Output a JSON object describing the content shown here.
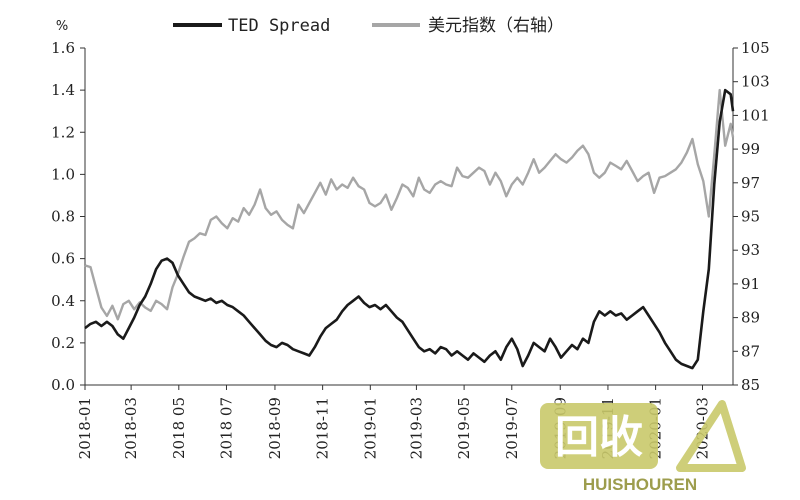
{
  "chart_data": {
    "type": "line",
    "left_axis": {
      "unit": "%",
      "ticks": [
        "0.0",
        "0.2",
        "0.4",
        "0.6",
        "0.8",
        "1.0",
        "1.2",
        "1.4",
        "1.6"
      ],
      "ylim": [
        0,
        1.6
      ]
    },
    "right_axis": {
      "ticks": [
        "85",
        "87",
        "89",
        "91",
        "93",
        "95",
        "97",
        "99",
        "101",
        "103",
        "105"
      ],
      "ylim": [
        85,
        105
      ]
    },
    "x_ticks": [
      "2018-01",
      "2018-03",
      "2018 05",
      "2018 07",
      "2018-09",
      "2018-11",
      "2019-01",
      "2019-03",
      "2019-05",
      "2019-07",
      "2019-09",
      "2019-11",
      "2020-01",
      "2020-03"
    ],
    "legend": [
      "TED Spread",
      "美元指数（右轴）"
    ],
    "legend_position": "top",
    "grid": false,
    "series": [
      {
        "name": "TED Spread",
        "axis": "left",
        "color": "#1a1a1a",
        "points": [
          [
            "2018-01-01",
            0.27
          ],
          [
            "2018-01-08",
            0.29
          ],
          [
            "2018-01-15",
            0.3
          ],
          [
            "2018-01-22",
            0.28
          ],
          [
            "2018-01-29",
            0.3
          ],
          [
            "2018-02-05",
            0.28
          ],
          [
            "2018-02-12",
            0.24
          ],
          [
            "2018-02-19",
            0.22
          ],
          [
            "2018-02-26",
            0.27
          ],
          [
            "2018-03-05",
            0.32
          ],
          [
            "2018-03-12",
            0.38
          ],
          [
            "2018-03-19",
            0.42
          ],
          [
            "2018-03-26",
            0.48
          ],
          [
            "2018-04-02",
            0.55
          ],
          [
            "2018-04-09",
            0.59
          ],
          [
            "2018-04-16",
            0.6
          ],
          [
            "2018-04-23",
            0.58
          ],
          [
            "2018-04-30",
            0.52
          ],
          [
            "2018-05-07",
            0.48
          ],
          [
            "2018-05-14",
            0.44
          ],
          [
            "2018-05-21",
            0.42
          ],
          [
            "2018-05-28",
            0.41
          ],
          [
            "2018-06-04",
            0.4
          ],
          [
            "2018-06-11",
            0.41
          ],
          [
            "2018-06-18",
            0.39
          ],
          [
            "2018-06-25",
            0.4
          ],
          [
            "2018-07-02",
            0.38
          ],
          [
            "2018-07-09",
            0.37
          ],
          [
            "2018-07-16",
            0.35
          ],
          [
            "2018-07-23",
            0.33
          ],
          [
            "2018-07-30",
            0.3
          ],
          [
            "2018-08-06",
            0.27
          ],
          [
            "2018-08-13",
            0.24
          ],
          [
            "2018-08-20",
            0.21
          ],
          [
            "2018-08-27",
            0.19
          ],
          [
            "2018-09-03",
            0.18
          ],
          [
            "2018-09-10",
            0.2
          ],
          [
            "2018-09-17",
            0.19
          ],
          [
            "2018-09-24",
            0.17
          ],
          [
            "2018-10-01",
            0.16
          ],
          [
            "2018-10-08",
            0.15
          ],
          [
            "2018-10-15",
            0.14
          ],
          [
            "2018-10-22",
            0.18
          ],
          [
            "2018-10-29",
            0.23
          ],
          [
            "2018-11-05",
            0.27
          ],
          [
            "2018-11-12",
            0.29
          ],
          [
            "2018-11-19",
            0.31
          ],
          [
            "2018-11-26",
            0.35
          ],
          [
            "2018-12-03",
            0.38
          ],
          [
            "2018-12-10",
            0.4
          ],
          [
            "2018-12-17",
            0.42
          ],
          [
            "2018-12-24",
            0.39
          ],
          [
            "2018-12-31",
            0.37
          ],
          [
            "2019-01-07",
            0.38
          ],
          [
            "2019-01-14",
            0.36
          ],
          [
            "2019-01-21",
            0.38
          ],
          [
            "2019-01-28",
            0.35
          ],
          [
            "2019-02-04",
            0.32
          ],
          [
            "2019-02-11",
            0.3
          ],
          [
            "2019-02-18",
            0.26
          ],
          [
            "2019-02-25",
            0.22
          ],
          [
            "2019-03-04",
            0.18
          ],
          [
            "2019-03-11",
            0.16
          ],
          [
            "2019-03-18",
            0.17
          ],
          [
            "2019-03-25",
            0.15
          ],
          [
            "2019-04-01",
            0.18
          ],
          [
            "2019-04-08",
            0.17
          ],
          [
            "2019-04-15",
            0.14
          ],
          [
            "2019-04-22",
            0.16
          ],
          [
            "2019-04-29",
            0.14
          ],
          [
            "2019-05-06",
            0.12
          ],
          [
            "2019-05-13",
            0.15
          ],
          [
            "2019-05-20",
            0.13
          ],
          [
            "2019-05-27",
            0.11
          ],
          [
            "2019-06-03",
            0.14
          ],
          [
            "2019-06-10",
            0.16
          ],
          [
            "2019-06-17",
            0.12
          ],
          [
            "2019-06-24",
            0.18
          ],
          [
            "2019-07-01",
            0.22
          ],
          [
            "2019-07-08",
            0.17
          ],
          [
            "2019-07-15",
            0.09
          ],
          [
            "2019-07-22",
            0.14
          ],
          [
            "2019-07-29",
            0.2
          ],
          [
            "2019-08-05",
            0.18
          ],
          [
            "2019-08-12",
            0.16
          ],
          [
            "2019-08-19",
            0.22
          ],
          [
            "2019-08-26",
            0.18
          ],
          [
            "2019-09-02",
            0.13
          ],
          [
            "2019-09-09",
            0.16
          ],
          [
            "2019-09-16",
            0.19
          ],
          [
            "2019-09-23",
            0.17
          ],
          [
            "2019-09-30",
            0.22
          ],
          [
            "2019-10-07",
            0.2
          ],
          [
            "2019-10-14",
            0.3
          ],
          [
            "2019-10-21",
            0.35
          ],
          [
            "2019-10-28",
            0.33
          ],
          [
            "2019-11-04",
            0.35
          ],
          [
            "2019-11-11",
            0.33
          ],
          [
            "2019-11-18",
            0.34
          ],
          [
            "2019-11-25",
            0.31
          ],
          [
            "2019-12-02",
            0.33
          ],
          [
            "2019-12-09",
            0.35
          ],
          [
            "2019-12-16",
            0.37
          ],
          [
            "2019-12-23",
            0.33
          ],
          [
            "2019-12-30",
            0.29
          ],
          [
            "2020-01-06",
            0.25
          ],
          [
            "2020-01-13",
            0.2
          ],
          [
            "2020-01-20",
            0.16
          ],
          [
            "2020-01-27",
            0.12
          ],
          [
            "2020-02-03",
            0.1
          ],
          [
            "2020-02-10",
            0.09
          ],
          [
            "2020-02-17",
            0.08
          ],
          [
            "2020-02-24",
            0.12
          ],
          [
            "2020-03-02",
            0.35
          ],
          [
            "2020-03-09",
            0.55
          ],
          [
            "2020-03-16",
            0.95
          ],
          [
            "2020-03-23",
            1.25
          ],
          [
            "2020-03-30",
            1.4
          ],
          [
            "2020-04-06",
            1.38
          ],
          [
            "2020-04-09",
            1.3
          ]
        ]
      },
      {
        "name": "美元指数（右轴）",
        "axis": "right",
        "color": "#a6a6a6",
        "points": [
          [
            "2018-01-01",
            92.1
          ],
          [
            "2018-01-08",
            92.0
          ],
          [
            "2018-01-15",
            90.8
          ],
          [
            "2018-01-22",
            89.6
          ],
          [
            "2018-01-29",
            89.1
          ],
          [
            "2018-02-05",
            89.7
          ],
          [
            "2018-02-12",
            88.9
          ],
          [
            "2018-02-19",
            89.8
          ],
          [
            "2018-02-26",
            90.0
          ],
          [
            "2018-03-05",
            89.5
          ],
          [
            "2018-03-12",
            89.9
          ],
          [
            "2018-03-19",
            89.6
          ],
          [
            "2018-03-26",
            89.4
          ],
          [
            "2018-04-02",
            90.0
          ],
          [
            "2018-04-09",
            89.8
          ],
          [
            "2018-04-16",
            89.5
          ],
          [
            "2018-04-23",
            90.8
          ],
          [
            "2018-04-30",
            91.6
          ],
          [
            "2018-05-07",
            92.6
          ],
          [
            "2018-05-14",
            93.5
          ],
          [
            "2018-05-21",
            93.7
          ],
          [
            "2018-05-28",
            94.0
          ],
          [
            "2018-06-04",
            93.9
          ],
          [
            "2018-06-11",
            94.8
          ],
          [
            "2018-06-18",
            95.0
          ],
          [
            "2018-06-25",
            94.6
          ],
          [
            "2018-07-02",
            94.3
          ],
          [
            "2018-07-09",
            94.9
          ],
          [
            "2018-07-16",
            94.7
          ],
          [
            "2018-07-23",
            95.5
          ],
          [
            "2018-07-30",
            95.1
          ],
          [
            "2018-08-06",
            95.7
          ],
          [
            "2018-08-13",
            96.6
          ],
          [
            "2018-08-20",
            95.5
          ],
          [
            "2018-08-27",
            95.1
          ],
          [
            "2018-09-03",
            95.3
          ],
          [
            "2018-09-10",
            94.8
          ],
          [
            "2018-09-17",
            94.5
          ],
          [
            "2018-09-24",
            94.3
          ],
          [
            "2018-10-01",
            95.7
          ],
          [
            "2018-10-08",
            95.2
          ],
          [
            "2018-10-15",
            95.8
          ],
          [
            "2018-10-22",
            96.4
          ],
          [
            "2018-10-29",
            97.0
          ],
          [
            "2018-11-05",
            96.3
          ],
          [
            "2018-11-12",
            97.2
          ],
          [
            "2018-11-19",
            96.6
          ],
          [
            "2018-11-26",
            96.9
          ],
          [
            "2018-12-03",
            96.7
          ],
          [
            "2018-12-10",
            97.3
          ],
          [
            "2018-12-17",
            96.8
          ],
          [
            "2018-12-24",
            96.6
          ],
          [
            "2018-12-31",
            95.8
          ],
          [
            "2019-01-07",
            95.6
          ],
          [
            "2019-01-14",
            95.8
          ],
          [
            "2019-01-21",
            96.3
          ],
          [
            "2019-01-28",
            95.4
          ],
          [
            "2019-02-04",
            96.1
          ],
          [
            "2019-02-11",
            96.9
          ],
          [
            "2019-02-18",
            96.7
          ],
          [
            "2019-02-25",
            96.2
          ],
          [
            "2019-03-04",
            97.3
          ],
          [
            "2019-03-11",
            96.6
          ],
          [
            "2019-03-18",
            96.4
          ],
          [
            "2019-03-25",
            96.9
          ],
          [
            "2019-04-01",
            97.1
          ],
          [
            "2019-04-08",
            96.9
          ],
          [
            "2019-04-15",
            96.8
          ],
          [
            "2019-04-22",
            97.9
          ],
          [
            "2019-04-29",
            97.4
          ],
          [
            "2019-05-06",
            97.3
          ],
          [
            "2019-05-13",
            97.6
          ],
          [
            "2019-05-20",
            97.9
          ],
          [
            "2019-05-27",
            97.7
          ],
          [
            "2019-06-03",
            96.9
          ],
          [
            "2019-06-10",
            97.6
          ],
          [
            "2019-06-17",
            97.1
          ],
          [
            "2019-06-24",
            96.2
          ],
          [
            "2019-07-01",
            96.9
          ],
          [
            "2019-07-08",
            97.3
          ],
          [
            "2019-07-15",
            96.9
          ],
          [
            "2019-07-22",
            97.6
          ],
          [
            "2019-07-29",
            98.4
          ],
          [
            "2019-08-05",
            97.6
          ],
          [
            "2019-08-12",
            97.9
          ],
          [
            "2019-08-19",
            98.3
          ],
          [
            "2019-08-26",
            98.7
          ],
          [
            "2019-09-02",
            98.4
          ],
          [
            "2019-09-09",
            98.2
          ],
          [
            "2019-09-16",
            98.5
          ],
          [
            "2019-09-23",
            98.9
          ],
          [
            "2019-09-30",
            99.2
          ],
          [
            "2019-10-07",
            98.7
          ],
          [
            "2019-10-14",
            97.6
          ],
          [
            "2019-10-21",
            97.3
          ],
          [
            "2019-10-28",
            97.6
          ],
          [
            "2019-11-04",
            98.2
          ],
          [
            "2019-11-11",
            98.0
          ],
          [
            "2019-11-18",
            97.8
          ],
          [
            "2019-11-25",
            98.3
          ],
          [
            "2019-12-02",
            97.7
          ],
          [
            "2019-12-09",
            97.1
          ],
          [
            "2019-12-16",
            97.4
          ],
          [
            "2019-12-23",
            97.6
          ],
          [
            "2019-12-30",
            96.4
          ],
          [
            "2020-01-06",
            97.3
          ],
          [
            "2020-01-13",
            97.4
          ],
          [
            "2020-01-20",
            97.6
          ],
          [
            "2020-01-27",
            97.8
          ],
          [
            "2020-02-03",
            98.2
          ],
          [
            "2020-02-10",
            98.8
          ],
          [
            "2020-02-17",
            99.6
          ],
          [
            "2020-02-24",
            98.1
          ],
          [
            "2020-03-02",
            97.1
          ],
          [
            "2020-03-09",
            95.0
          ],
          [
            "2020-03-16",
            98.6
          ],
          [
            "2020-03-23",
            102.5
          ],
          [
            "2020-03-30",
            99.2
          ],
          [
            "2020-04-06",
            100.5
          ],
          [
            "2020-04-09",
            99.7
          ]
        ]
      }
    ]
  },
  "watermark": {
    "logo_text": "回收",
    "site_text": "HUISHOUREN",
    "colors": {
      "logo_bg": "#c9c96a",
      "logo_fg": "#ffffff",
      "accent": "#8c8c2e"
    }
  }
}
